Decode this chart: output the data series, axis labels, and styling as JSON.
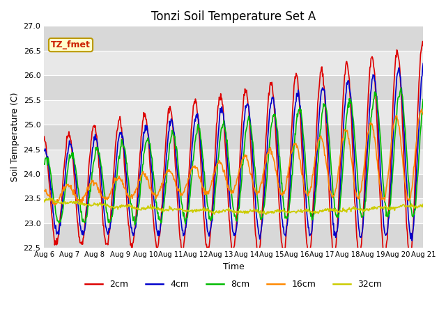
{
  "title": "Tonzi Soil Temperature Set A",
  "xlabel": "Time",
  "ylabel": "Soil Temperature (C)",
  "ylim": [
    22.5,
    27.0
  ],
  "annotation": "TZ_fmet",
  "legend_labels": [
    "2cm",
    "4cm",
    "8cm",
    "16cm",
    "32cm"
  ],
  "line_colors": [
    "#dd0000",
    "#0000cc",
    "#00bb00",
    "#ff8800",
    "#cccc00"
  ],
  "x_tick_labels": [
    "Aug 6",
    "Aug 7",
    "Aug 8",
    "Aug 9",
    "Aug 10",
    "Aug 11",
    "Aug 12",
    "Aug 13",
    "Aug 14",
    "Aug 15",
    "Aug 16",
    "Aug 17",
    "Aug 18",
    "Aug 19",
    "Aug 20",
    "Aug 21"
  ],
  "background_color": "#ffffff",
  "plot_bg_color": "#e8e8e8",
  "n_points": 720
}
